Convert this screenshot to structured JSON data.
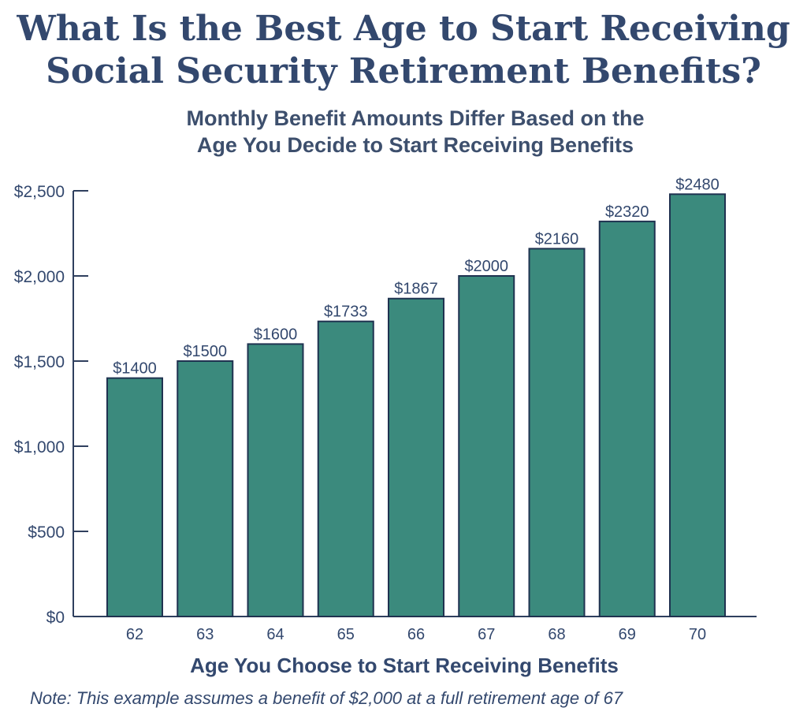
{
  "title_lines": [
    "What Is the Best Age to Start Receiving",
    "Social Security Retirement Benefits?"
  ],
  "subtitle_lines": [
    "Monthly Benefit Amounts Differ Based on the",
    "Age You Decide to Start Receiving Benefits"
  ],
  "note": "Note: This example assumes a benefit of $2,000 at a full retirement age of 67",
  "colors": {
    "bar": "#3b8a7d",
    "bar_stroke": "#1f3250",
    "axis": "#2f3f5e",
    "text": "#33486e"
  },
  "chart_data": {
    "type": "bar",
    "categories": [
      "62",
      "63",
      "64",
      "65",
      "66",
      "67",
      "68",
      "69",
      "70"
    ],
    "values": [
      1400,
      1500,
      1600,
      1733,
      1867,
      2000,
      2160,
      2320,
      2480
    ],
    "value_labels": [
      "$1400",
      "$1500",
      "$1600",
      "$1733",
      "$1867",
      "$2000",
      "$2160",
      "$2320",
      "$2480"
    ],
    "ylim": [
      0,
      2500
    ],
    "yticks": [
      0,
      500,
      1000,
      1500,
      2000,
      2500
    ],
    "ytick_labels": [
      "$0",
      "$500",
      "$1,000",
      "$1,500",
      "$2,000",
      "$2,500"
    ],
    "xlabel": "Age You Choose to Start Receiving Benefits",
    "ylabel": "",
    "grid": false,
    "legend": "none"
  }
}
